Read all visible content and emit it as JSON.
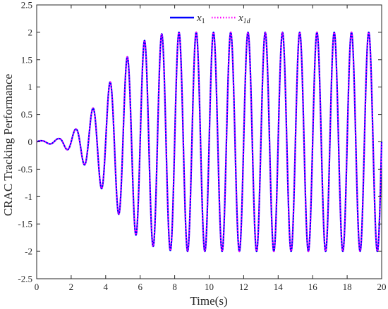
{
  "chart_data": {
    "type": "line",
    "xlabel": "Time(s)",
    "ylabel": "CRAC Tracking Performance",
    "xlim": [
      0,
      20
    ],
    "ylim": [
      -2.5,
      2.5
    ],
    "xticks": [
      0,
      2,
      4,
      6,
      8,
      10,
      12,
      14,
      16,
      18,
      20
    ],
    "yticks": [
      -2.5,
      -2,
      -1.5,
      -1,
      -0.5,
      0,
      0.5,
      1,
      1.5,
      2,
      2.5
    ],
    "xtick_labels": [
      "0",
      "2",
      "4",
      "6",
      "8",
      "10",
      "12",
      "14",
      "16",
      "18",
      "20"
    ],
    "ytick_labels": [
      "-2.5",
      "-2",
      "-1.5",
      "-1",
      "-0.5",
      "0",
      "0.5",
      "1",
      "1.5",
      "2",
      "2.5"
    ],
    "grid": false,
    "legend_position": "top-center",
    "signal": {
      "description_of_shape": "sinusoid with growing amplitude that saturates",
      "frequency_hz": 1.0,
      "amplitude_final": 2.0,
      "peaks": [
        {
          "t": 0.3,
          "y": 0.02
        },
        {
          "t": 1.3,
          "y": 0.06
        },
        {
          "t": 2.3,
          "y": 0.24
        },
        {
          "t": 3.25,
          "y": 0.61
        },
        {
          "t": 4.25,
          "y": 1.09
        },
        {
          "t": 5.25,
          "y": 1.55
        },
        {
          "t": 6.25,
          "y": 1.85
        },
        {
          "t": 7.25,
          "y": 1.97
        },
        {
          "t": 8.25,
          "y": 2.0
        },
        {
          "t": 20.0,
          "y": 2.0
        }
      ]
    },
    "series": [
      {
        "name": "x1",
        "legend_main": "x",
        "legend_sub": "1",
        "color": "#0000ff",
        "style": "solid",
        "width": 2.2
      },
      {
        "name": "x1d",
        "legend_main": "x",
        "legend_sub": "1d",
        "color": "#ff00ff",
        "style": "dotted",
        "width": 2.2
      }
    ]
  }
}
